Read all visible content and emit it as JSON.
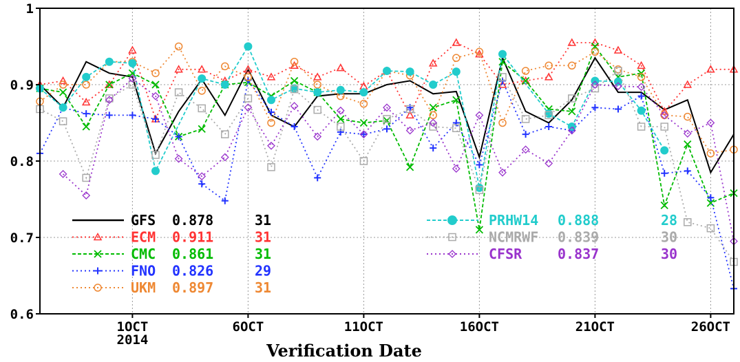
{
  "chart_data": {
    "type": "line",
    "title": "",
    "xlabel": "Verification Date",
    "ylabel": "",
    "ylim": [
      0.6,
      1.0
    ],
    "yticks": [
      "0.6",
      "0.7",
      "0.8",
      "0.9",
      "1"
    ],
    "x_ticks": [
      {
        "day": 1,
        "label": "1OCT",
        "sub": "2014"
      },
      {
        "day": 6,
        "label": "6OCT"
      },
      {
        "day": 11,
        "label": "11OCT"
      },
      {
        "day": 16,
        "label": "16OCT"
      },
      {
        "day": 21,
        "label": "21OCT"
      },
      {
        "day": 26,
        "label": "26OCT"
      }
    ],
    "xlim": [
      27,
      57
    ],
    "grid": true,
    "legend_placement": "bottom",
    "series": [
      {
        "name": "GFS",
        "score": "0.878",
        "count": "31",
        "color": "#000000",
        "marker": "none",
        "dash": "solid",
        "x": [
          27,
          28,
          29,
          30,
          31,
          32,
          33,
          34,
          35,
          36,
          37,
          38,
          39,
          40,
          41,
          42,
          43,
          44,
          45,
          46,
          47,
          48,
          49,
          50,
          51,
          52,
          53,
          54,
          55,
          56,
          57
        ],
        "values": [
          0.9,
          0.87,
          0.93,
          0.915,
          0.91,
          0.81,
          0.865,
          0.907,
          0.86,
          0.92,
          0.86,
          0.845,
          0.885,
          0.888,
          0.888,
          0.9,
          0.905,
          0.888,
          0.891,
          0.805,
          0.935,
          0.865,
          0.85,
          0.88,
          0.935,
          0.89,
          0.89,
          0.867,
          0.88,
          0.785,
          0.835
        ]
      },
      {
        "name": "ECM",
        "score": "0.911",
        "count": "31",
        "color": "#ff3333",
        "marker": "triangle",
        "dash": "dot",
        "x": [
          27,
          28,
          29,
          30,
          31,
          32,
          33,
          34,
          35,
          36,
          37,
          38,
          39,
          40,
          41,
          42,
          43,
          44,
          45,
          46,
          47,
          48,
          49,
          50,
          51,
          52,
          53,
          54,
          55,
          56,
          57
        ],
        "values": [
          0.9,
          0.905,
          0.877,
          0.9,
          0.945,
          0.855,
          0.92,
          0.92,
          0.905,
          0.92,
          0.91,
          0.925,
          0.91,
          0.922,
          0.898,
          0.918,
          0.86,
          0.928,
          0.955,
          0.94,
          0.9,
          0.905,
          0.91,
          0.955,
          0.955,
          0.945,
          0.925,
          0.865,
          0.9,
          0.92,
          0.92
        ]
      },
      {
        "name": "CMC",
        "score": "0.861",
        "count": "31",
        "color": "#00bb00",
        "marker": "cross",
        "dash": "dash",
        "x": [
          27,
          28,
          29,
          30,
          31,
          32,
          33,
          34,
          35,
          36,
          37,
          38,
          39,
          40,
          41,
          42,
          43,
          44,
          45,
          46,
          47,
          48,
          49,
          50,
          51,
          52,
          53,
          54,
          55,
          56,
          57
        ],
        "values": [
          0.895,
          0.89,
          0.845,
          0.9,
          0.915,
          0.9,
          0.832,
          0.842,
          0.9,
          0.903,
          0.885,
          0.905,
          0.89,
          0.855,
          0.85,
          0.853,
          0.792,
          0.87,
          0.88,
          0.71,
          0.93,
          0.905,
          0.868,
          0.865,
          0.95,
          0.91,
          0.915,
          0.742,
          0.822,
          0.745,
          0.758
        ]
      },
      {
        "name": "FNO",
        "score": "0.826",
        "count": "29",
        "color": "#2233ff",
        "marker": "plus",
        "dash": "dot",
        "x": [
          27,
          28,
          29,
          30,
          31,
          32,
          33,
          34,
          35,
          36,
          37,
          38,
          39,
          40,
          41,
          42,
          43,
          44,
          45,
          46,
          47,
          48,
          49,
          50,
          51,
          52,
          53,
          54,
          55,
          56,
          57
        ],
        "values": [
          0.81,
          0.87,
          0.862,
          0.86,
          0.86,
          0.855,
          0.832,
          0.77,
          0.748,
          0.906,
          0.864,
          0.845,
          0.778,
          0.838,
          0.835,
          0.842,
          0.87,
          0.817,
          0.85,
          0.795,
          0.905,
          0.835,
          0.845,
          0.84,
          0.87,
          0.868,
          0.885,
          0.784,
          0.787,
          0.752,
          0.633
        ]
      },
      {
        "name": "UKM",
        "score": "0.897",
        "count": "31",
        "color": "#ee8833",
        "marker": "circle",
        "dash": "dot",
        "x": [
          27,
          28,
          29,
          30,
          31,
          32,
          33,
          34,
          35,
          36,
          37,
          38,
          39,
          40,
          41,
          42,
          43,
          44,
          45,
          46,
          47,
          48,
          49,
          50,
          51,
          52,
          53,
          54,
          55,
          56,
          57
        ],
        "values": [
          0.878,
          0.9,
          0.9,
          0.93,
          0.93,
          0.915,
          0.95,
          0.892,
          0.924,
          0.91,
          0.85,
          0.93,
          0.9,
          0.885,
          0.875,
          0.918,
          0.912,
          0.86,
          0.935,
          0.943,
          0.85,
          0.918,
          0.925,
          0.925,
          0.943,
          0.92,
          0.91,
          0.86,
          0.858,
          0.81,
          0.815
        ]
      },
      {
        "name": "PRHW14",
        "score": "0.888",
        "count": "28",
        "color": "#22cccc",
        "marker": "filled-circle",
        "dash": "dash",
        "x": [
          27,
          28,
          29,
          30,
          31,
          32,
          34,
          35,
          36,
          37,
          38,
          39,
          40,
          41,
          42,
          43,
          44,
          45,
          46,
          47,
          49,
          50,
          51,
          52,
          53,
          54
        ],
        "values": [
          0.895,
          0.87,
          0.91,
          0.93,
          0.928,
          0.787,
          0.908,
          0.9,
          0.95,
          0.88,
          0.895,
          0.89,
          0.893,
          0.89,
          0.918,
          0.917,
          0.9,
          0.917,
          0.765,
          0.94,
          0.862,
          0.845,
          0.905,
          0.904,
          0.866,
          0.814
        ]
      },
      {
        "name": "NCMRWF",
        "score": "0.839",
        "count": "30",
        "color": "#aaaaaa",
        "marker": "square",
        "dash": "dot",
        "x": [
          27,
          28,
          29,
          30,
          31,
          32,
          33,
          34,
          35,
          36,
          37,
          38,
          39,
          40,
          41,
          42,
          43,
          44,
          45,
          46,
          47,
          48,
          49,
          50,
          51,
          52,
          53,
          54,
          55,
          56,
          57
        ],
        "values": [
          0.868,
          0.852,
          0.778,
          0.882,
          0.9,
          0.808,
          0.89,
          0.869,
          0.835,
          0.882,
          0.792,
          0.894,
          0.867,
          0.845,
          0.8,
          0.855,
          0.868,
          0.845,
          0.843,
          0.762,
          0.91,
          0.855,
          0.86,
          0.882,
          0.895,
          0.918,
          0.845,
          0.845,
          0.72,
          0.712,
          0.668
        ]
      },
      {
        "name": "CFSR",
        "score": "0.837",
        "count": "30",
        "color": "#9933cc",
        "marker": "diamond",
        "dash": "dot",
        "x": [
          28,
          29,
          30,
          31,
          32,
          33,
          34,
          35,
          36,
          37,
          38,
          39,
          40,
          41,
          42,
          43,
          44,
          45,
          46,
          47,
          48,
          49,
          50,
          51,
          52,
          53,
          54,
          55,
          56,
          57
        ],
        "values": [
          0.783,
          0.755,
          0.88,
          0.908,
          0.885,
          0.803,
          0.78,
          0.805,
          0.87,
          0.82,
          0.872,
          0.832,
          0.866,
          0.835,
          0.87,
          0.84,
          0.85,
          0.79,
          0.86,
          0.785,
          0.815,
          0.797,
          0.84,
          0.9,
          0.898,
          0.897,
          0.86,
          0.836,
          0.85,
          0.695
        ]
      }
    ]
  }
}
